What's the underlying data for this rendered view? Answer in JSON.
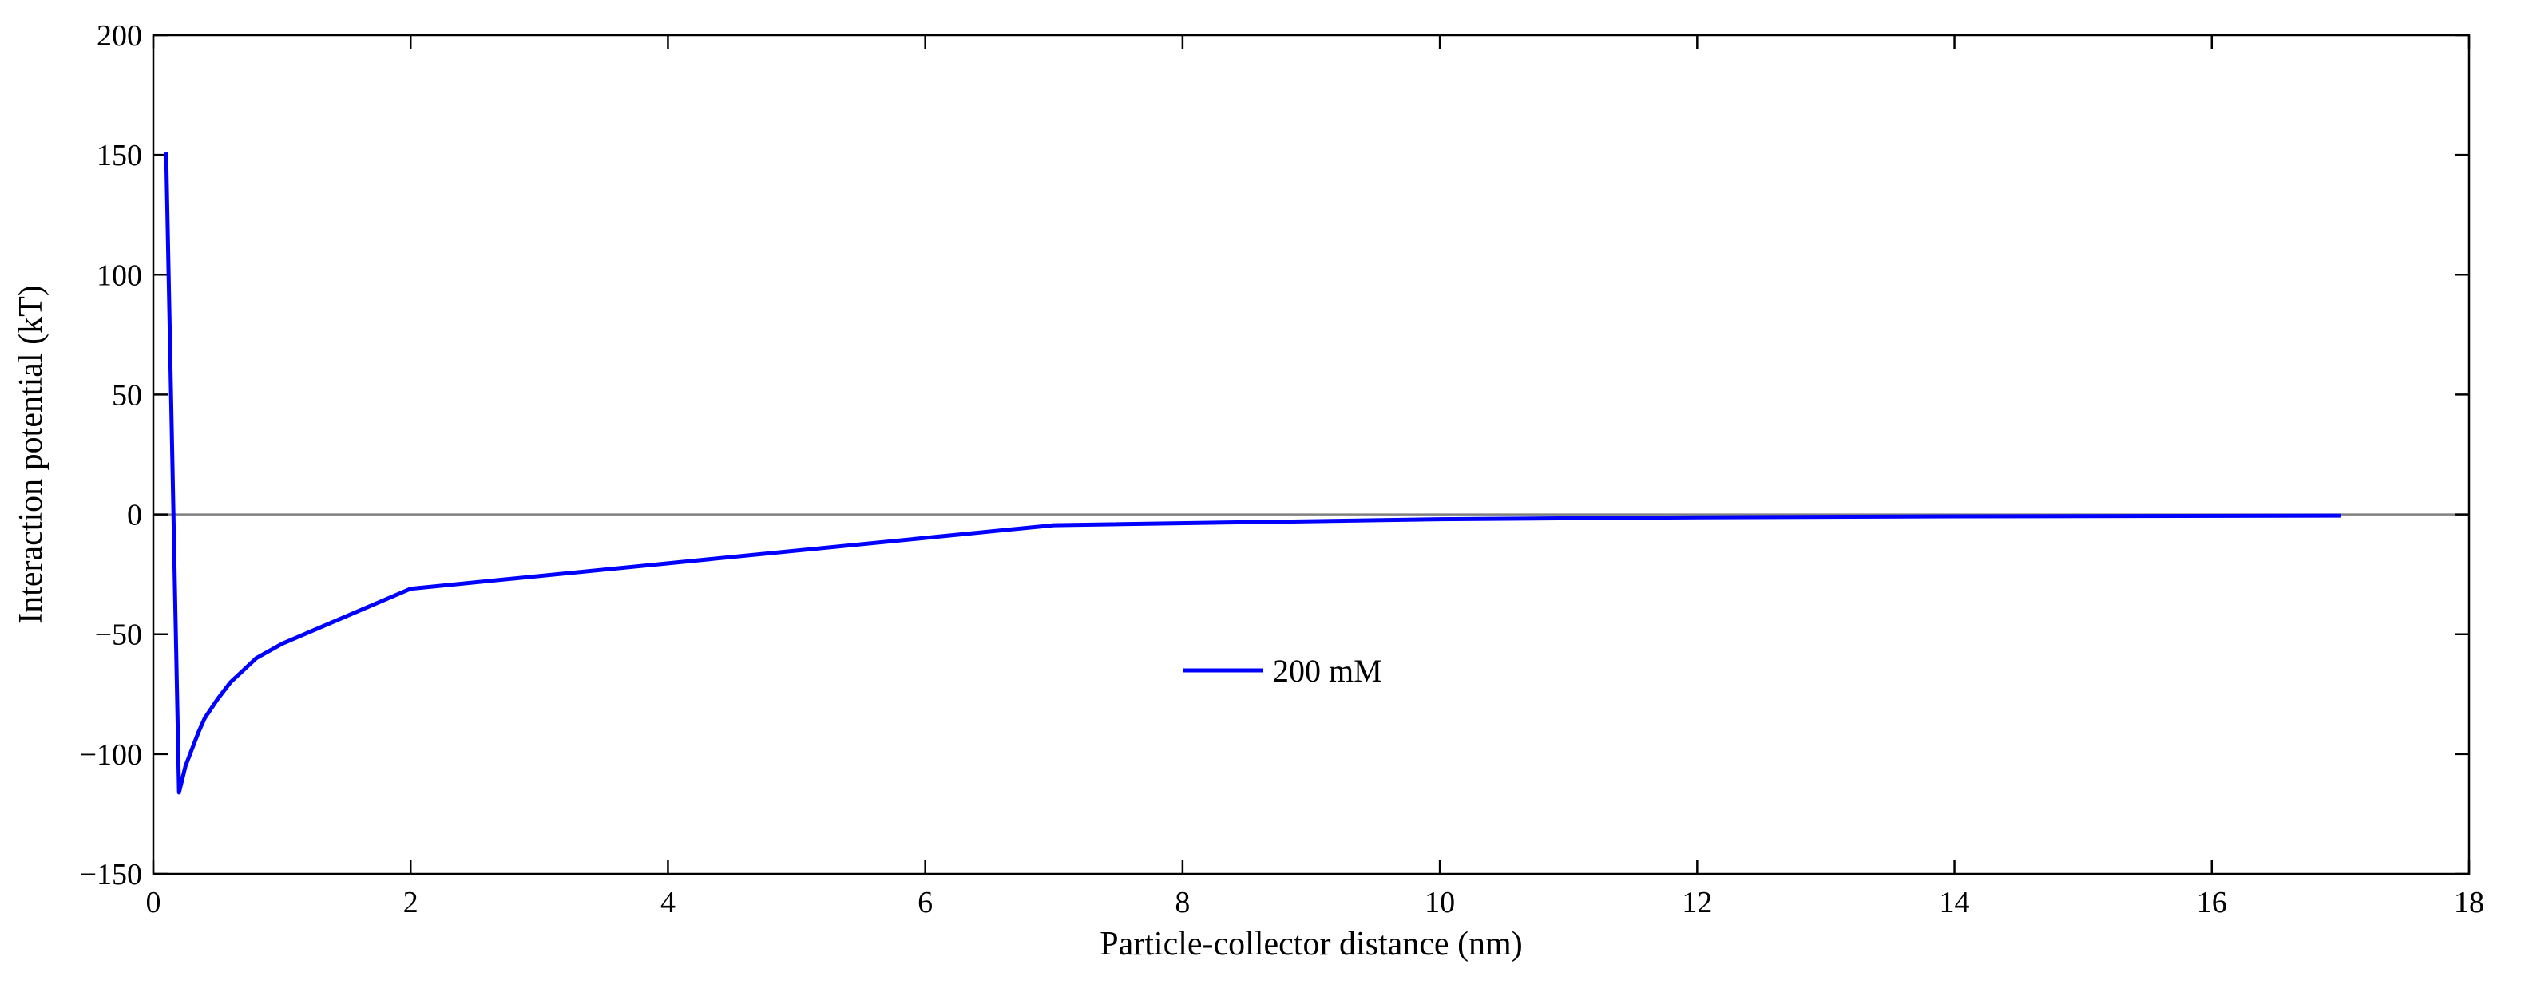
{
  "chart_data": {
    "type": "line",
    "title": "",
    "xlabel": "Particle-collector distance (nm)",
    "ylabel": "Interaction potential (kT)",
    "xlim": [
      0,
      18
    ],
    "ylim": [
      -150,
      200
    ],
    "x_ticks": [
      0,
      2,
      4,
      6,
      8,
      10,
      12,
      14,
      16,
      18
    ],
    "y_ticks": [
      -150,
      -100,
      -50,
      0,
      50,
      100,
      150,
      200
    ],
    "x_tick_labels": [
      "0",
      "2",
      "4",
      "6",
      "8",
      "10",
      "12",
      "14",
      "16",
      "18"
    ],
    "y_tick_labels": [
      "−150",
      "−100",
      "−50",
      "0",
      "50",
      "100",
      "150",
      "200"
    ],
    "grid": false,
    "zero_line": true,
    "legend_position": "center",
    "series": [
      {
        "name": "200 mM",
        "color": "#0000ff",
        "x": [
          0.1,
          0.2,
          0.25,
          0.3,
          0.35,
          0.4,
          0.5,
          0.6,
          0.7,
          0.8,
          0.9,
          1.0,
          2.0,
          7.0,
          10.0,
          12.0,
          14.0,
          17.0
        ],
        "y": [
          151,
          -116,
          -105,
          -98,
          -91,
          -85,
          -77,
          -70,
          -65,
          -60,
          -57,
          -54,
          -31,
          -4.5,
          -2,
          -1.2,
          -0.8,
          -0.5
        ]
      }
    ]
  }
}
